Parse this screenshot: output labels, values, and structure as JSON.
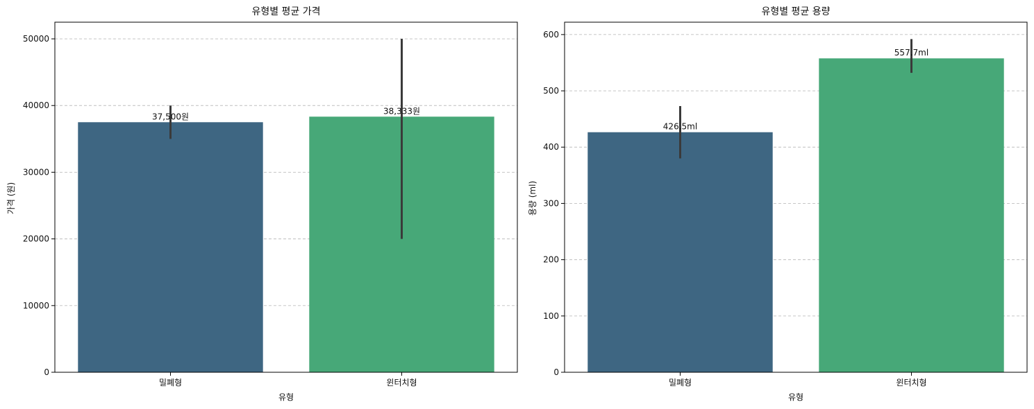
{
  "chart_data": [
    {
      "type": "bar",
      "title": "유형별 평균 가격",
      "xlabel": "유형",
      "ylabel": "가격 (원)",
      "categories": [
        "밀폐형",
        "윈터치형"
      ],
      "values": [
        37500,
        38333
      ],
      "value_labels": [
        "37,500원",
        "38,333원"
      ],
      "error_low": [
        35000,
        20000
      ],
      "error_high": [
        40000,
        50000
      ],
      "ylim": [
        0,
        52500
      ],
      "yticks": [
        0,
        10000,
        20000,
        30000,
        40000,
        50000
      ],
      "ytick_labels": [
        "0",
        "10000",
        "20000",
        "30000",
        "40000",
        "50000"
      ],
      "colors": [
        "#3e6682",
        "#47a878"
      ],
      "grid": "y"
    },
    {
      "type": "bar",
      "title": "유형별 평균 용량",
      "xlabel": "유형",
      "ylabel": "용량 (ml)",
      "categories": [
        "밀폐형",
        "윈터치형"
      ],
      "values": [
        426.5,
        557.7
      ],
      "value_labels": [
        "426.5ml",
        "557.7ml"
      ],
      "error_low": [
        380,
        532
      ],
      "error_high": [
        473,
        592
      ],
      "ylim": [
        0,
        622
      ],
      "yticks": [
        0,
        100,
        200,
        300,
        400,
        500,
        600
      ],
      "ytick_labels": [
        "0",
        "100",
        "200",
        "300",
        "400",
        "500",
        "600"
      ],
      "colors": [
        "#3e6682",
        "#47a878"
      ],
      "grid": "y"
    }
  ]
}
